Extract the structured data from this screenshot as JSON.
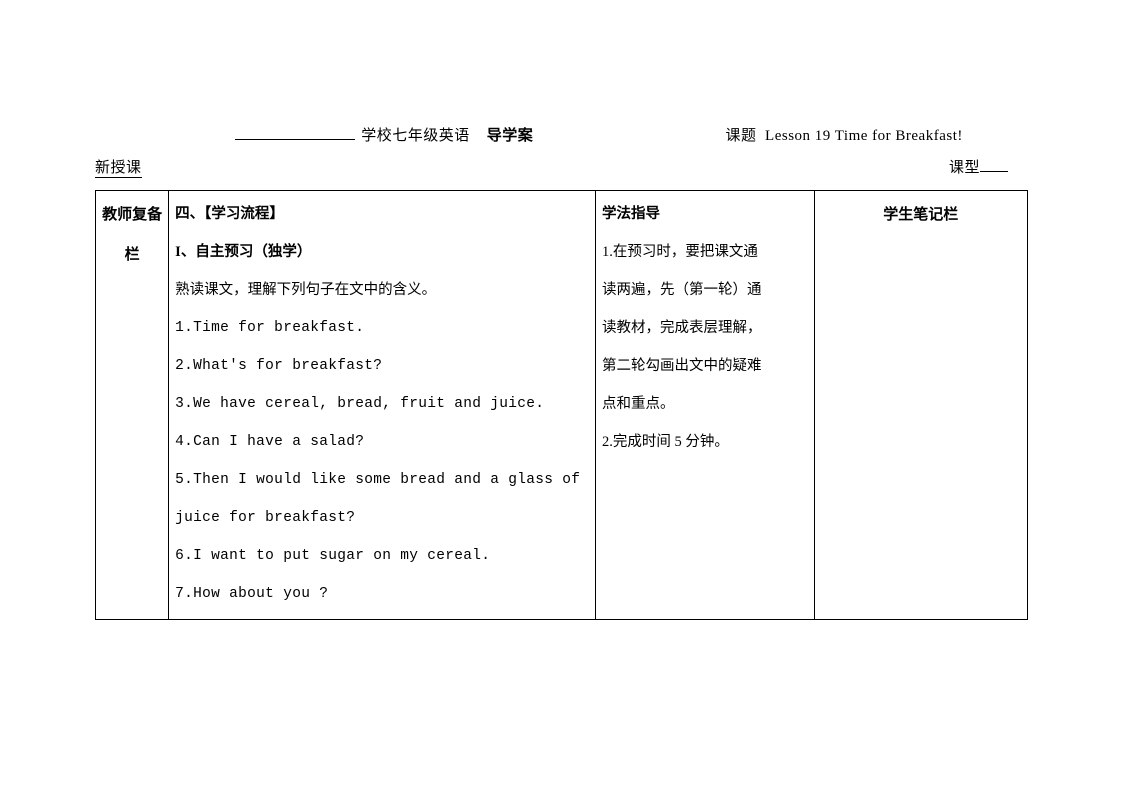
{
  "header": {
    "school_suffix": "学校七年级英语",
    "doc_type": "导学案",
    "topic_label": "课题",
    "topic_value": "Lesson 19 Time for Breakfast!",
    "lesson_type_label": "课型",
    "lesson_type_value": "新授课"
  },
  "table": {
    "col1_header_line1": "教师复备",
    "col1_header_line2": "栏",
    "col2": {
      "title": "四、【学习流程】",
      "section_title": "I、自主预习（独学）",
      "intro": "熟读课文，理解下列句子在文中的含义。",
      "items": [
        "1.Time for breakfast.",
        "2.What's for breakfast?",
        "3.We have cereal, bread, fruit and juice.",
        "4.Can I have a salad?",
        "5.Then I would like some bread and a glass of",
        "juice for breakfast?",
        "6.I want to put sugar on my cereal.",
        "7.How about you ?"
      ]
    },
    "col3": {
      "title": "学法指导",
      "lines": [
        "1.在预习时，要把课文通",
        "读两遍，先（第一轮）通",
        "读教材，完成表层理解，",
        "第二轮勾画出文中的疑难",
        "点和重点。",
        "2.完成时间 5 分钟。"
      ]
    },
    "col4_header": "学生笔记栏"
  },
  "styles": {
    "background_color": "#ffffff",
    "border_color": "#000000",
    "text_color": "#000000",
    "body_fontsize": 14.5,
    "header_fontsize": 15,
    "line_height": 38
  }
}
